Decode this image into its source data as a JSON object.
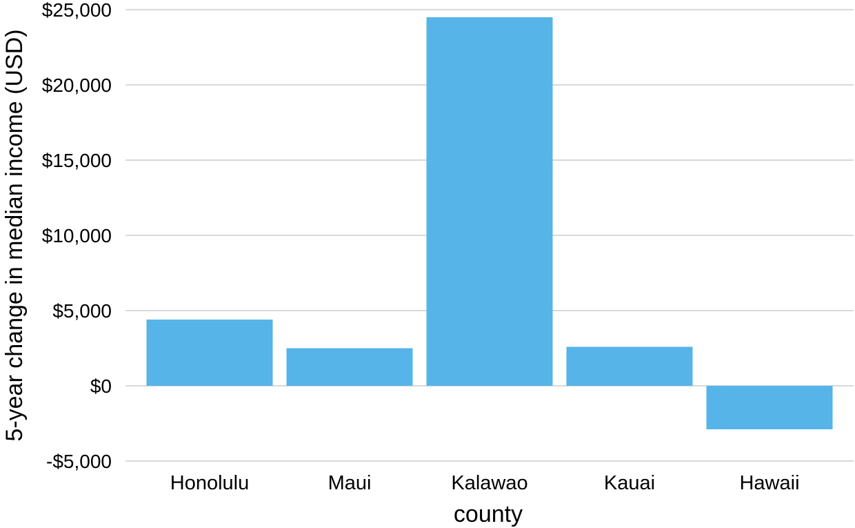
{
  "chart_data": {
    "type": "bar",
    "title": "",
    "xlabel": "county",
    "ylabel": "5-year change in median income (USD)",
    "categories": [
      "Honolulu",
      "Maui",
      "Kalawao",
      "Kauai",
      "Hawaii"
    ],
    "values": [
      4400,
      2500,
      24500,
      2600,
      -2900
    ],
    "ylim": [
      -5000,
      25000
    ],
    "yticks": [
      -5000,
      0,
      5000,
      10000,
      15000,
      20000,
      25000
    ],
    "ytick_labels": [
      "-$5,000",
      "$0",
      "$5,000",
      "$10,000",
      "$15,000",
      "$20,000",
      "$25,000"
    ],
    "bar_color": "#56B4E9",
    "grid": "horizontal",
    "legend": "none"
  }
}
